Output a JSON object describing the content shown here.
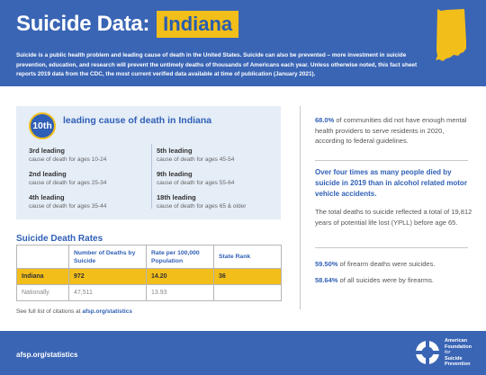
{
  "header": {
    "title_main": "Suicide Data:",
    "title_state": "Indiana",
    "intro": "Suicide is a public health problem and leading cause of death in the United States. Suicide can also be prevented – more investment in suicide prevention, education, and research will prevent the untimely deaths of thousands of Americans each year. Unless otherwise noted, this fact sheet reports 2019 data from the CDC, the most current verified data available at time of publication (January 2021)."
  },
  "ranking": {
    "badge": "10th",
    "heading": "leading cause of death in Indiana",
    "items": [
      {
        "label": "3rd leading",
        "sub": "cause of death for ages 10-24"
      },
      {
        "label": "2nd leading",
        "sub": "cause of death for ages 25-34"
      },
      {
        "label": "4th leading",
        "sub": "cause of death for ages 35-44"
      },
      {
        "label": "5th leading",
        "sub": "cause of death for ages 45-54"
      },
      {
        "label": "9th leading",
        "sub": "cause of death for ages 55-64"
      },
      {
        "label": "18th leading",
        "sub": "cause of death for ages 65 & older"
      }
    ]
  },
  "rates": {
    "title": "Suicide Death Rates",
    "headers": [
      "",
      "Number of Deaths by Suicide",
      "Rate per 100,000 Population",
      "State Rank"
    ],
    "rows": [
      [
        "Indiana",
        "972",
        "14.20",
        "36"
      ],
      [
        "Nationally",
        "47,511",
        "13.93",
        ""
      ]
    ]
  },
  "citation": {
    "prefix": "See full list of citations at ",
    "link": "afsp.org/statistics"
  },
  "right": {
    "stat1_value": "68.0%",
    "stat1_text": " of communities did not have enough mental health providers to serve residents in 2020, according to federal guidelines.",
    "stat2": "Over four times as many people died by suicide in 2019 than in alcohol related motor vehicle accidents.",
    "stat3": "The total deaths to suicide reflected a total of 19,812 years of potential life lost (YPLL) before age 65.",
    "stat4_value": "59.50%",
    "stat4_text": " of firearm deaths were suicides.",
    "stat5_value": "58.64%",
    "stat5_text": " of all suicides were by firearms."
  },
  "footer": {
    "link": "afsp.org/statistics",
    "logo_line1": "American",
    "logo_line2": "Foundation",
    "logo_line3": "for",
    "logo_line4": "Suicide",
    "logo_line5": "Prevention"
  },
  "colors": {
    "brand_blue": "#3a65b5",
    "accent_yellow": "#f2be1a"
  }
}
